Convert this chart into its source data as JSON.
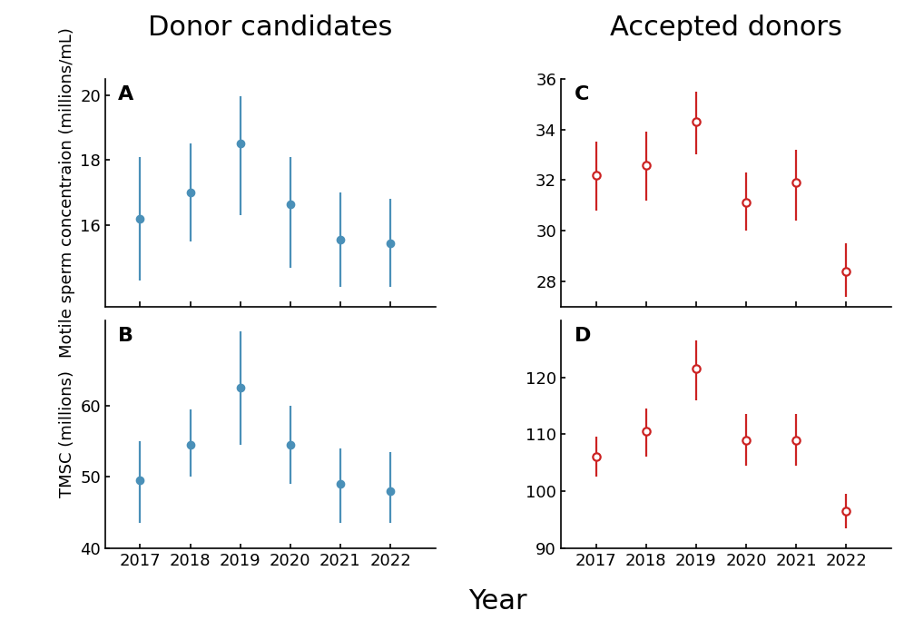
{
  "years": [
    2017,
    2018,
    2019,
    2020,
    2021,
    2022
  ],
  "panel_A": {
    "label": "A",
    "means": [
      16.2,
      17.0,
      18.5,
      16.65,
      15.55,
      15.45
    ],
    "lower": [
      14.3,
      15.5,
      16.3,
      14.7,
      14.1,
      14.1
    ],
    "upper": [
      18.1,
      18.5,
      19.95,
      18.1,
      17.0,
      16.8
    ],
    "ylabel": "Motile sperm concentraion (millions/mL)",
    "ylim": [
      13.5,
      20.5
    ],
    "yticks": [
      16,
      18,
      20
    ]
  },
  "panel_B": {
    "label": "B",
    "means": [
      49.5,
      54.5,
      62.5,
      54.5,
      49.0,
      48.0
    ],
    "lower": [
      43.5,
      50.0,
      54.5,
      49.0,
      43.5,
      43.5
    ],
    "upper": [
      55.0,
      59.5,
      70.5,
      60.0,
      54.0,
      53.5
    ],
    "ylabel": "TMSC (millions)",
    "ylim": [
      40,
      72
    ],
    "yticks": [
      40,
      50,
      60
    ]
  },
  "panel_C": {
    "label": "C",
    "means": [
      32.2,
      32.6,
      34.3,
      31.1,
      31.9,
      28.4
    ],
    "lower": [
      30.8,
      31.2,
      33.0,
      30.0,
      30.4,
      27.4
    ],
    "upper": [
      33.5,
      33.9,
      35.5,
      32.3,
      33.2,
      29.5
    ],
    "ylim": [
      27,
      36
    ],
    "yticks": [
      28,
      30,
      32,
      34,
      36
    ]
  },
  "panel_D": {
    "label": "D",
    "means": [
      106.0,
      110.5,
      121.5,
      109.0,
      109.0,
      96.5
    ],
    "lower": [
      102.5,
      106.0,
      116.0,
      104.5,
      104.5,
      93.5
    ],
    "upper": [
      109.5,
      114.5,
      126.5,
      113.5,
      113.5,
      99.5
    ],
    "ylim": [
      90,
      130
    ],
    "yticks": [
      90,
      100,
      110,
      120
    ]
  },
  "color_blue": "#4a90b8",
  "color_red": "#cc2222",
  "title_left": "Donor candidates",
  "title_right": "Accepted donors",
  "xlabel": "Year",
  "title_fontsize": 22,
  "axis_label_fontsize": 13,
  "tick_fontsize": 13,
  "panel_label_fontsize": 16,
  "xlabel_fontsize": 22,
  "marker_size": 6,
  "line_width": 1.6
}
